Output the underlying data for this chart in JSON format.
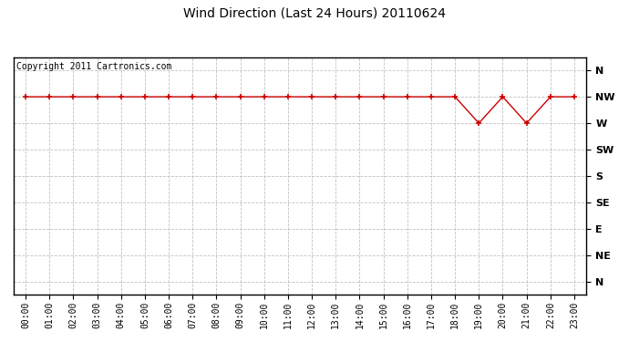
{
  "title": "Wind Direction (Last 24 Hours) 20110624",
  "copyright_text": "Copyright 2011 Cartronics.com",
  "line_color": "#cc0000",
  "marker_color": "#cc0000",
  "background_color": "#ffffff",
  "plot_bg_color": "#ffffff",
  "grid_color": "#bbbbbb",
  "x_labels": [
    "00:00",
    "01:00",
    "02:00",
    "03:00",
    "04:00",
    "05:00",
    "06:00",
    "07:00",
    "08:00",
    "09:00",
    "10:00",
    "11:00",
    "12:00",
    "13:00",
    "14:00",
    "15:00",
    "16:00",
    "17:00",
    "18:00",
    "19:00",
    "20:00",
    "21:00",
    "22:00",
    "23:00"
  ],
  "y_tick_positions": [
    0,
    1,
    2,
    3,
    4,
    5,
    6,
    7,
    8
  ],
  "y_tick_labels": [
    "N",
    "NE",
    "E",
    "SE",
    "S",
    "SW",
    "W",
    "NW",
    "N"
  ],
  "wind_data": [
    7,
    7,
    7,
    7,
    7,
    7,
    7,
    7,
    7,
    7,
    7,
    7,
    7,
    7,
    7,
    7,
    7,
    7,
    7,
    6,
    7,
    6,
    7,
    7
  ],
  "figsize": [
    6.9,
    3.75
  ],
  "dpi": 100
}
